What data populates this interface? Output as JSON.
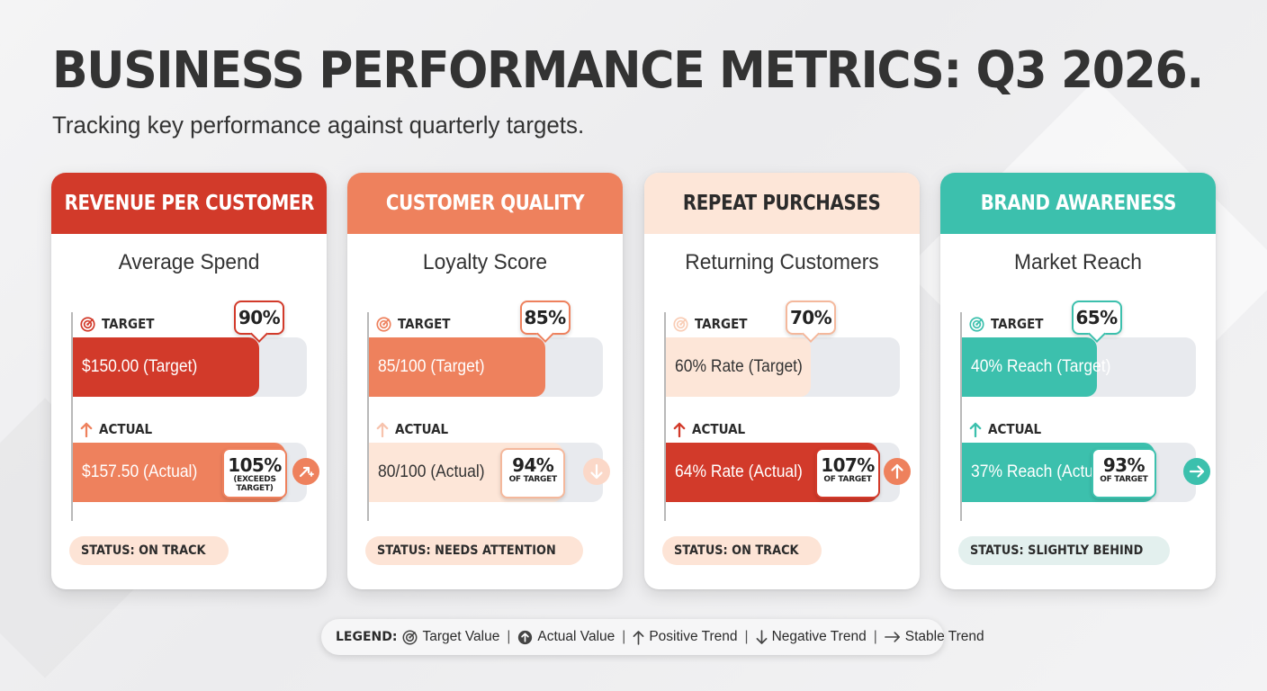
{
  "title": "BUSINESS PERFORMANCE METRICS: Q3 2026.",
  "subtitle": "Tracking key performance against quarterly targets.",
  "labels": {
    "target": "TARGET",
    "actual": "ACTUAL"
  },
  "colors": {
    "red": "#d23a2a",
    "coral": "#ee815d",
    "peach": "#fde6d8",
    "teal": "#3cc0ad",
    "track": "#e8eaee",
    "red_status": "#fde4d6",
    "teal_status": "#e3f0ee"
  },
  "legend": {
    "title": "LEGEND:",
    "items": [
      {
        "icon": "target-icon",
        "label": "Target Value"
      },
      {
        "icon": "actual-circle-icon",
        "label": "Actual Value"
      },
      {
        "icon": "arrow-up-icon",
        "label": "Positive Trend"
      },
      {
        "icon": "arrow-down-icon",
        "label": "Negative Trend"
      },
      {
        "icon": "arrow-right-icon",
        "label": "Stable Trend"
      }
    ]
  },
  "chart_data": [
    {
      "type": "bar",
      "title": "REVENUE PER CUSTOMER",
      "metric": "Average Spend",
      "target": {
        "percent": 90,
        "label": "90%",
        "text": "$150.00 (Target)"
      },
      "actual": {
        "percent": 105,
        "label": "105%",
        "sublabel": "(EXCEEDS TARGET)",
        "text": "$157.50 (Actual)"
      },
      "trend": "positive",
      "status": "STATUS: ON TRACK",
      "header_color": "#d23a2a",
      "target_bar_color": "#d23a2a",
      "actual_bar_color": "#ee815d"
    },
    {
      "type": "bar",
      "title": "CUSTOMER QUALITY",
      "metric": "Loyalty Score",
      "target": {
        "percent": 85,
        "label": "85%",
        "text": "85/100 (Target)"
      },
      "actual": {
        "percent": 94,
        "label": "94%",
        "sublabel": "OF TARGET",
        "text": "80/100 (Actual)"
      },
      "trend": "negative",
      "status": "STATUS: NEEDS ATTENTION",
      "header_color": "#ee815d",
      "target_bar_color": "#ee815d",
      "actual_bar_color": "#fde6d8"
    },
    {
      "type": "bar",
      "title": "REPEAT PURCHASES",
      "metric": "Returning Customers",
      "target": {
        "percent": 70,
        "label": "70%",
        "text": "60% Rate (Target)"
      },
      "actual": {
        "percent": 107,
        "label": "107%",
        "sublabel": "OF TARGET",
        "text": "64% Rate (Actual)"
      },
      "trend": "positive",
      "status": "STATUS: ON TRACK",
      "header_color": "#fde6d8",
      "target_bar_color": "#fde6d8",
      "actual_bar_color": "#d23a2a"
    },
    {
      "type": "bar",
      "title": "BRAND AWARENESS",
      "metric": "Market Reach",
      "target": {
        "percent": 65,
        "label": "65%",
        "text": "40% Reach (Target)"
      },
      "actual": {
        "percent": 93,
        "label": "93%",
        "sublabel": "OF TARGET",
        "text": "37% Reach (Actual)"
      },
      "trend": "stable",
      "status": "STATUS: SLIGHTLY BEHIND",
      "header_color": "#3cc0ad",
      "target_bar_color": "#3cc0ad",
      "actual_bar_color": "#3cc0ad"
    }
  ]
}
